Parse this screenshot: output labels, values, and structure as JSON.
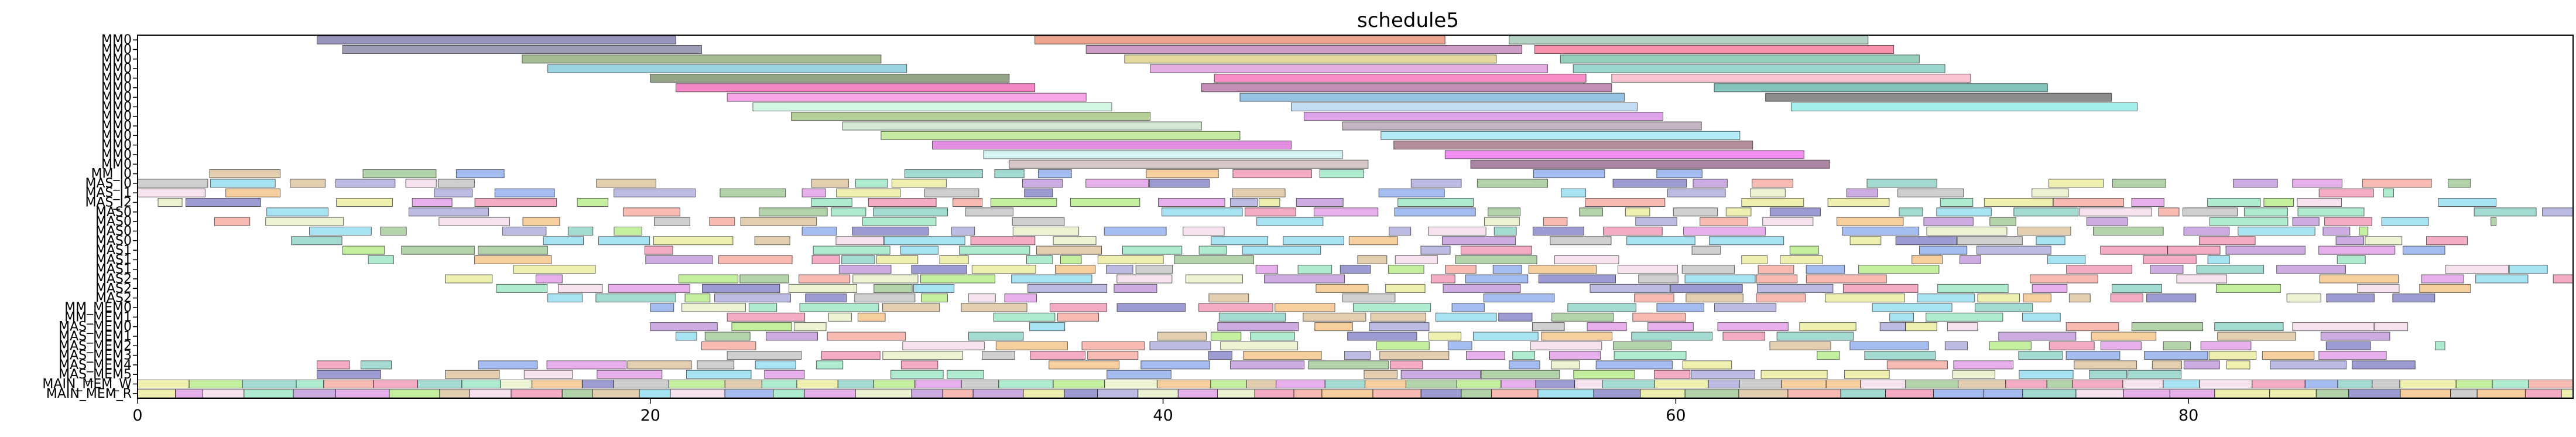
{
  "chart_data": {
    "type": "gantt",
    "title": "schedule5",
    "xlabel": "",
    "ylabel": "",
    "xlim": [
      0,
      95
    ],
    "xticks": [
      0,
      20,
      40,
      60,
      80
    ],
    "rows": [
      "MM0",
      "MM0",
      "MM0",
      "MM0",
      "MM0",
      "MM0",
      "MM0",
      "MM0",
      "MM0",
      "MM0",
      "MM0",
      "MM0",
      "MM0",
      "MM0",
      "MM_I0",
      "MAS_I0",
      "MAS_I1",
      "MAS_I2",
      "MAS0",
      "MAS0",
      "MAS0",
      "MAS0",
      "MAS1",
      "MAS1",
      "MAS1",
      "MAS2",
      "MAS2",
      "MAS2",
      "MM_MEM0",
      "MM_MEM1",
      "MAS_MEM0",
      "MAS_MEM1",
      "MAS_MEM2",
      "MAS_MEM3",
      "MAS_MEM4",
      "MAS_MEM5",
      "MAIN_MEM_W",
      "MAIN_MEM_R"
    ],
    "grid": false,
    "bar_alpha": 0.5,
    "edge_color": "#000000",
    "long_bars": [
      {
        "row": 0,
        "start": 7.0,
        "end": 21.0,
        "color": "#2e2a7a"
      },
      {
        "row": 0,
        "start": 35.0,
        "end": 51.0,
        "color": "#d94a1e"
      },
      {
        "row": 0,
        "start": 53.5,
        "end": 67.5,
        "color": "#6aa88a"
      },
      {
        "row": 1,
        "start": 8.0,
        "end": 22.0,
        "color": "#3b3b6e"
      },
      {
        "row": 1,
        "start": 37.0,
        "end": 54.0,
        "color": "#a03a8e"
      },
      {
        "row": 1,
        "start": 54.5,
        "end": 68.5,
        "color": "#f0285a"
      },
      {
        "row": 2,
        "start": 15.0,
        "end": 29.0,
        "color": "#4a7a2a"
      },
      {
        "row": 2,
        "start": 38.5,
        "end": 53.0,
        "color": "#c8b440"
      },
      {
        "row": 2,
        "start": 55.5,
        "end": 69.5,
        "color": "#2ea07a"
      },
      {
        "row": 3,
        "start": 16.0,
        "end": 30.0,
        "color": "#3aa8c8"
      },
      {
        "row": 3,
        "start": 39.5,
        "end": 55.0,
        "color": "#c85ac8"
      },
      {
        "row": 3,
        "start": 56.0,
        "end": 70.5,
        "color": "#3ab0a0"
      },
      {
        "row": 4,
        "start": 20.0,
        "end": 34.0,
        "color": "#2a4a10"
      },
      {
        "row": 4,
        "start": 42.0,
        "end": 56.5,
        "color": "#f01e8c"
      },
      {
        "row": 4,
        "start": 57.5,
        "end": 71.5,
        "color": "#f88aa8"
      },
      {
        "row": 5,
        "start": 21.0,
        "end": 35.0,
        "color": "#e8108c"
      },
      {
        "row": 5,
        "start": 41.5,
        "end": 57.5,
        "color": "#8a1e6e"
      },
      {
        "row": 5,
        "start": 61.5,
        "end": 74.5,
        "color": "#0a8a7a"
      },
      {
        "row": 6,
        "start": 23.0,
        "end": 37.0,
        "color": "#f04ad4"
      },
      {
        "row": 6,
        "start": 43.0,
        "end": 58.0,
        "color": "#2a88c8"
      },
      {
        "row": 6,
        "start": 63.5,
        "end": 77.0,
        "color": "#1a1a1a"
      },
      {
        "row": 7,
        "start": 24.0,
        "end": 38.0,
        "color": "#a8f0c8"
      },
      {
        "row": 7,
        "start": 45.0,
        "end": 58.5,
        "color": "#8abce8"
      },
      {
        "row": 7,
        "start": 64.5,
        "end": 78.0,
        "color": "#48e0d8"
      },
      {
        "row": 8,
        "start": 25.5,
        "end": 39.5,
        "color": "#6aa030"
      },
      {
        "row": 8,
        "start": 45.5,
        "end": 59.5,
        "color": "#c048d8"
      },
      {
        "row": 9,
        "start": 27.5,
        "end": 41.5,
        "color": "#a8d0a8"
      },
      {
        "row": 9,
        "start": 47.0,
        "end": 61.0,
        "color": "#8a6a8a"
      },
      {
        "row": 10,
        "start": 29.0,
        "end": 43.0,
        "color": "#90d848"
      },
      {
        "row": 10,
        "start": 48.5,
        "end": 62.5,
        "color": "#68d8f0"
      },
      {
        "row": 11,
        "start": 31.0,
        "end": 45.0,
        "color": "#c81ec8"
      },
      {
        "row": 11,
        "start": 49.0,
        "end": 63.0,
        "color": "#6a1a3a"
      },
      {
        "row": 12,
        "start": 33.0,
        "end": 47.0,
        "color": "#a8e8e8"
      },
      {
        "row": 12,
        "start": 51.0,
        "end": 65.0,
        "color": "#e820e8"
      },
      {
        "row": 13,
        "start": 34.0,
        "end": 48.0,
        "color": "#b09090"
      },
      {
        "row": 13,
        "start": 52.0,
        "end": 66.0,
        "color": "#5a0a4a"
      }
    ],
    "short_bar_palette": [
      "#7a78c8",
      "#f0a040",
      "#60d8a0",
      "#e85a8a",
      "#88e040",
      "#4a7ae0",
      "#c8a060",
      "#50c8e8",
      "#d060d8",
      "#a0a0a0",
      "#e0e060",
      "#68a858",
      "#f07868",
      "#9a5ac8",
      "#48b8a8",
      "#f0c8e0",
      "#3a3aa8",
      "#d8e8a8"
    ],
    "short_bars_seed": 5,
    "main_mem_end": 95
  }
}
